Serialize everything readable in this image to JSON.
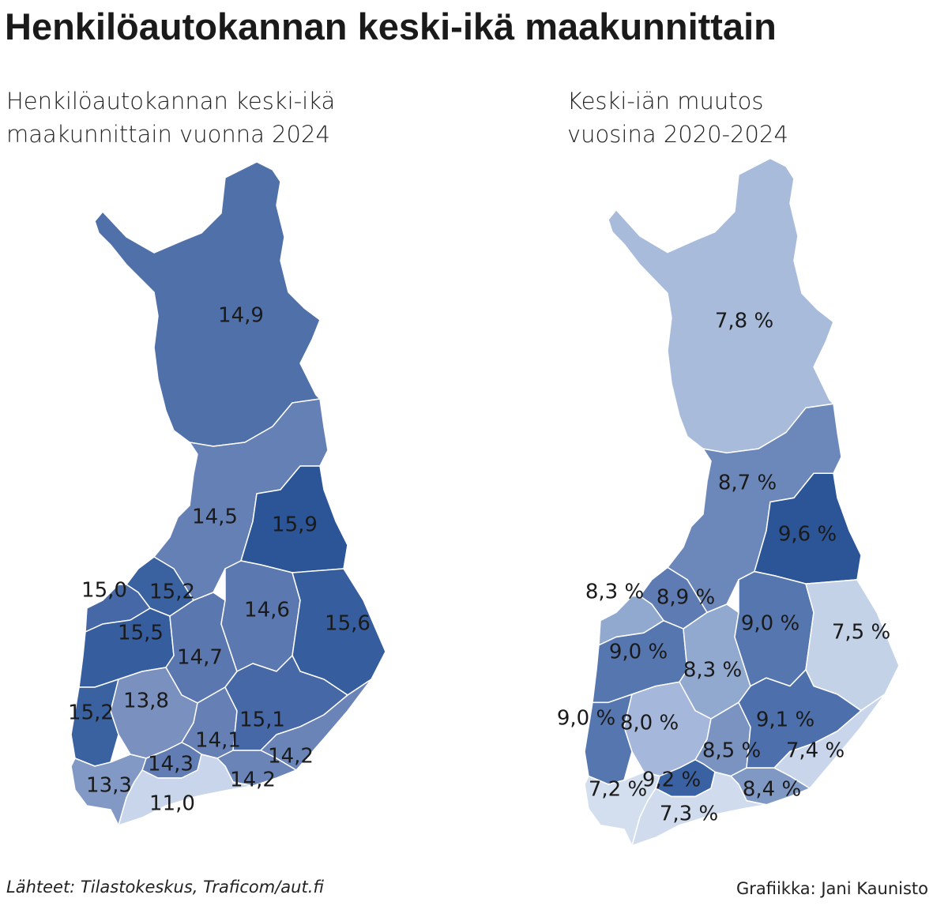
{
  "header": {
    "title": "Henkilöautokannan keski-ikä maakunnittain"
  },
  "maps": [
    {
      "subtitle": [
        "Henkilöautokannan keski-ikä",
        "maakunnittain vuonna 2024"
      ],
      "regions": [
        {
          "label": "14,9",
          "color": "#4f70a8"
        },
        {
          "label": "14,5",
          "color": "#6580b5"
        },
        {
          "label": "15,9",
          "color": "#2b5597"
        },
        {
          "label": "15,2",
          "color": "#3a61a0"
        },
        {
          "label": "15,0",
          "color": "#4668a6"
        },
        {
          "label": "15,5",
          "color": "#365e9e"
        },
        {
          "label": "14,7",
          "color": "#5a77b0"
        },
        {
          "label": "14,6",
          "color": "#5b78b0"
        },
        {
          "label": "15,6",
          "color": "#365e9e"
        },
        {
          "label": "15,2",
          "color": "#3a61a0"
        },
        {
          "label": "13,8",
          "color": "#7a90bf"
        },
        {
          "label": "14,1",
          "color": "#6680b5"
        },
        {
          "label": "15,1",
          "color": "#4668a6"
        },
        {
          "label": "14,2",
          "color": "#6a84b8"
        },
        {
          "label": "14,2",
          "color": "#6a84b8"
        },
        {
          "label": "14,3",
          "color": "#627db3"
        },
        {
          "label": "13,3",
          "color": "#8299c5"
        },
        {
          "label": "11,0",
          "color": "#c8d5ea"
        }
      ]
    },
    {
      "subtitle": [
        "Keski-iän muutos",
        "vuosina 2020-2024"
      ],
      "regions": [
        {
          "label": "7,8 %",
          "color": "#a8bbdb"
        },
        {
          "label": "8,7 %",
          "color": "#6c88ba"
        },
        {
          "label": "9,6 %",
          "color": "#2b5597"
        },
        {
          "label": "8,9 %",
          "color": "#5e7cb3"
        },
        {
          "label": "8,3 %",
          "color": "#91a8cf"
        },
        {
          "label": "9,0 %",
          "color": "#5676b0"
        },
        {
          "label": "8,3 %",
          "color": "#91a8cf"
        },
        {
          "label": "9,0 %",
          "color": "#5676b0"
        },
        {
          "label": "7,5 %",
          "color": "#c4d2e8"
        },
        {
          "label": "9,0 %",
          "color": "#5676b0"
        },
        {
          "label": "8,0 %",
          "color": "#a5b7da"
        },
        {
          "label": "8,5 %",
          "color": "#7a93c1"
        },
        {
          "label": "9,1 %",
          "color": "#4d6fab"
        },
        {
          "label": "7,4 %",
          "color": "#c8d5ea"
        },
        {
          "label": "8,4 %",
          "color": "#8099c4"
        },
        {
          "label": "9,2 %",
          "color": "#3a62a2"
        },
        {
          "label": "7,2 %",
          "color": "#d3deef"
        },
        {
          "label": "7,3 %",
          "color": "#d0dcee"
        }
      ]
    }
  ],
  "footer": {
    "sources": "Lähteet: Tilastokeskus, Traficom/aut.fi",
    "credit": "Grafiikka: Jani Kaunisto"
  }
}
